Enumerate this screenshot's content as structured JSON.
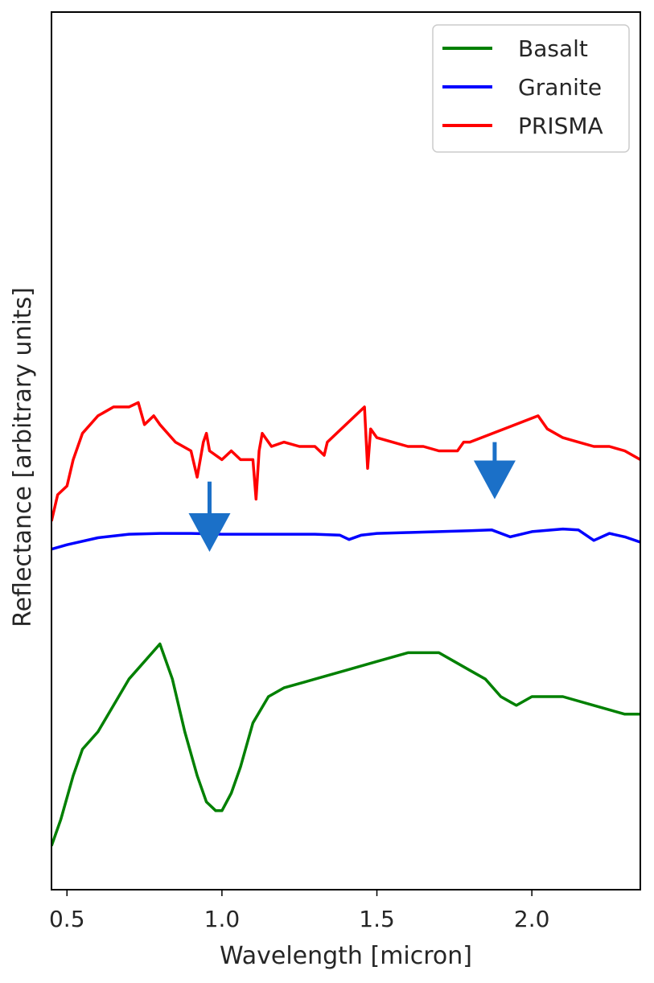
{
  "chart_data": {
    "type": "line",
    "xlabel": "Wavelength [micron]",
    "ylabel": "Reflectance [arbitrary units]",
    "xlim": [
      0.45,
      2.35
    ],
    "ylim": [
      0,
      100
    ],
    "xticks": [
      "0.5",
      "1.0",
      "1.5",
      "2.0"
    ],
    "xtick_values": [
      0.5,
      1.0,
      1.5,
      2.0
    ],
    "yticks_shown": false,
    "grid": false,
    "legend_position": "top-right",
    "series": [
      {
        "name": "Basalt",
        "color": "#008000",
        "x": [
          0.45,
          0.48,
          0.52,
          0.55,
          0.6,
          0.65,
          0.7,
          0.75,
          0.8,
          0.84,
          0.88,
          0.92,
          0.95,
          0.98,
          1.0,
          1.03,
          1.06,
          1.1,
          1.15,
          1.2,
          1.3,
          1.4,
          1.5,
          1.6,
          1.7,
          1.75,
          1.8,
          1.85,
          1.9,
          1.95,
          2.0,
          2.1,
          2.2,
          2.3,
          2.35
        ],
        "y": [
          5,
          8,
          13,
          16,
          18,
          21,
          24,
          26,
          28,
          24,
          18,
          13,
          10,
          9,
          9,
          11,
          14,
          19,
          22,
          23,
          24,
          25,
          26,
          27,
          27,
          26,
          25,
          24,
          22,
          21,
          22,
          22,
          21,
          20,
          20
        ]
      },
      {
        "name": "Granite",
        "color": "#0000ff",
        "x": [
          0.45,
          0.5,
          0.6,
          0.7,
          0.8,
          0.9,
          1.0,
          1.1,
          1.2,
          1.3,
          1.38,
          1.41,
          1.45,
          1.5,
          1.6,
          1.7,
          1.8,
          1.87,
          1.93,
          2.0,
          2.1,
          2.15,
          2.2,
          2.25,
          2.3,
          2.35
        ],
        "y": [
          38.8,
          39.3,
          40.1,
          40.5,
          40.6,
          40.6,
          40.5,
          40.5,
          40.5,
          40.5,
          40.4,
          39.9,
          40.4,
          40.6,
          40.7,
          40.8,
          40.9,
          41.0,
          40.2,
          40.8,
          41.1,
          41.0,
          39.8,
          40.6,
          40.2,
          39.6
        ]
      },
      {
        "name": "PRISMA",
        "color": "#ff0000",
        "x": [
          0.45,
          0.47,
          0.5,
          0.52,
          0.55,
          0.6,
          0.65,
          0.7,
          0.73,
          0.75,
          0.78,
          0.8,
          0.85,
          0.9,
          0.92,
          0.94,
          0.95,
          0.96,
          1.0,
          1.03,
          1.06,
          1.1,
          1.11,
          1.12,
          1.13,
          1.16,
          1.2,
          1.25,
          1.3,
          1.33,
          1.34,
          1.46,
          1.47,
          1.48,
          1.5,
          1.55,
          1.6,
          1.65,
          1.7,
          1.76,
          1.78,
          1.8,
          2.02,
          2.05,
          2.1,
          2.15,
          2.2,
          2.25,
          2.3,
          2.35
        ],
        "y": [
          42,
          45,
          46,
          49,
          52,
          54,
          55,
          55,
          55.5,
          53,
          54,
          53,
          51,
          50,
          47,
          51,
          52,
          50,
          49,
          50,
          49,
          49,
          44.5,
          50,
          52,
          50.5,
          51,
          50.5,
          50.5,
          49.5,
          51,
          55,
          48,
          52.5,
          51.5,
          51,
          50.5,
          50.5,
          50,
          50,
          51,
          51,
          54,
          52.5,
          51.5,
          51,
          50.5,
          50.5,
          50,
          49
        ]
      }
    ],
    "annotations": [
      {
        "type": "arrow",
        "color": "#1b70c8",
        "x": 0.96,
        "y_from": 46.5,
        "y_to": 38.5
      },
      {
        "type": "arrow",
        "color": "#1b70c8",
        "x": 1.88,
        "y_from": 51,
        "y_to": 44.5
      }
    ]
  }
}
